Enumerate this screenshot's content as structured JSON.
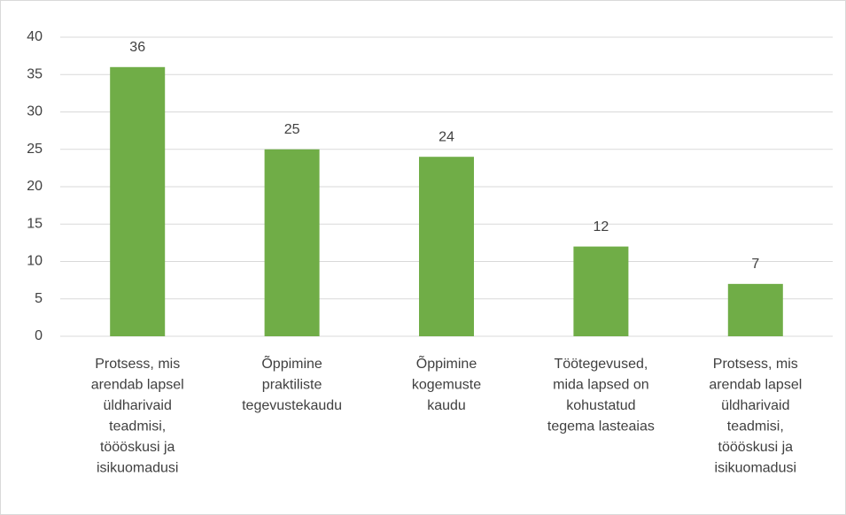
{
  "chart_data": {
    "type": "bar",
    "categories": [
      "Protsess, mis\narendab lapsel\nüldharivaid\nteadmisi,\ntöööskusi ja\nisikuomadusi",
      "Õppimine\npraktiliste\ntegevustekaudu",
      "Õppimine\nkogemuste\nkaudu",
      "Töötegevused,\nmida lapsed on\nkohustatud\ntegema lasteaias",
      "Protsess, mis\narendab lapsel\nüldharivaid\nteadmisi,\ntöööskusi ja\nisikuomadusi"
    ],
    "values": [
      36,
      25,
      24,
      12,
      7
    ],
    "color": "#70ad47",
    "ylim": [
      0,
      40
    ],
    "yticks": [
      0,
      5,
      10,
      15,
      20,
      25,
      30,
      35,
      40
    ],
    "grid": true
  }
}
